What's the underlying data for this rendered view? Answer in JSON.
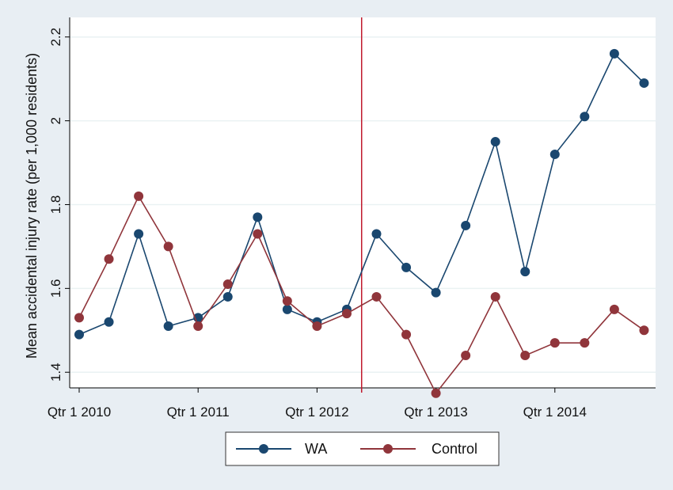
{
  "chart_data": {
    "type": "line",
    "ylabel": "Mean accidental injury rate (per 1,000 residents)",
    "xlabel": "",
    "x_tick_labels": [
      "Qtr 1 2010",
      "Qtr 1 2011",
      "Qtr 1 2012",
      "Qtr 1 2013",
      "Qtr 1 2014"
    ],
    "y_ticks": [
      1.4,
      1.6,
      1.8,
      2.0,
      2.2
    ],
    "y_tick_labels": [
      "1.4",
      "1.6",
      "1.8",
      "2",
      "2.2"
    ],
    "ylim": [
      1.35,
      2.22
    ],
    "x": [
      "2010 Q1",
      "2010 Q2",
      "2010 Q3",
      "2010 Q4",
      "2011 Q1",
      "2011 Q2",
      "2011 Q3",
      "2011 Q4",
      "2012 Q1",
      "2012 Q2",
      "2012 Q3",
      "2012 Q4",
      "2013 Q1",
      "2013 Q2",
      "2013 Q3",
      "2013 Q4",
      "2014 Q1",
      "2014 Q2",
      "2014 Q3",
      "2014 Q4"
    ],
    "intervention_line": "between 2012 Q2 and 2012 Q3",
    "series": [
      {
        "name": "WA",
        "color": "#1a476f",
        "values": [
          1.49,
          1.52,
          1.73,
          1.51,
          1.53,
          1.58,
          1.77,
          1.55,
          1.52,
          1.55,
          1.73,
          1.65,
          1.59,
          1.75,
          1.95,
          1.64,
          1.92,
          2.01,
          2.16,
          2.09
        ]
      },
      {
        "name": "Control",
        "color": "#90353b",
        "values": [
          1.53,
          1.67,
          1.82,
          1.7,
          1.51,
          1.61,
          1.73,
          1.57,
          1.51,
          1.54,
          1.58,
          1.49,
          1.35,
          1.44,
          1.58,
          1.44,
          1.47,
          1.47,
          1.55,
          1.5
        ]
      }
    ],
    "reference_line_color": "#c0182b",
    "grid": true,
    "legend_position": "bottom"
  }
}
